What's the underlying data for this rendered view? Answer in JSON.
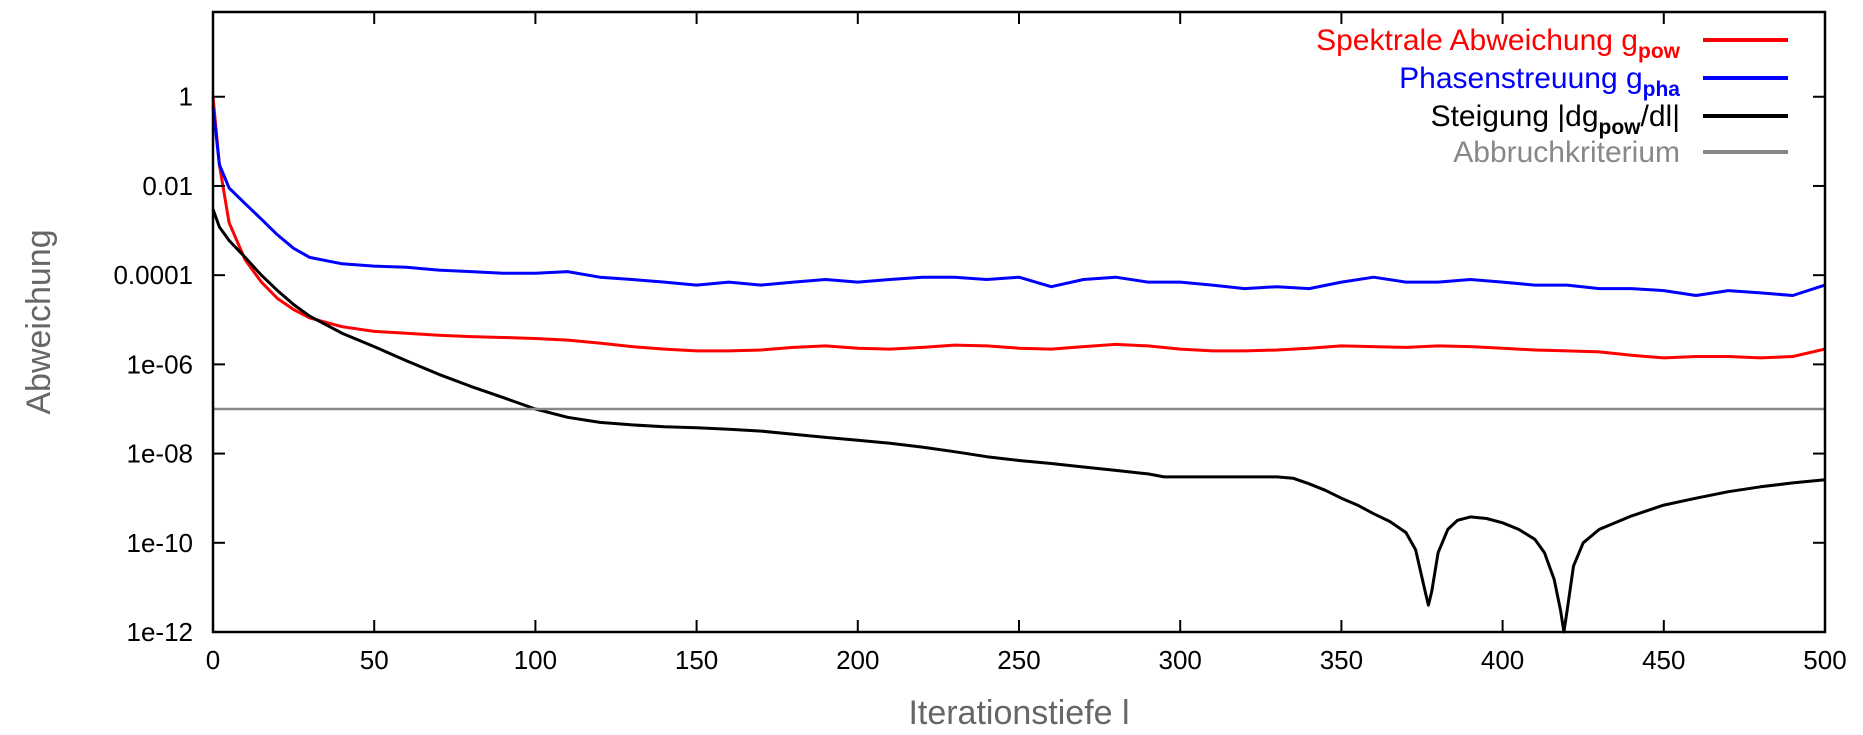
{
  "chart_data": {
    "type": "line",
    "xlabel": "Iterationstiefe l",
    "ylabel": "Abweichung",
    "xlim": [
      0,
      500
    ],
    "ylim_log10": [
      -12,
      1.9
    ],
    "yscale": "log",
    "grid": false,
    "legend_position": "top-right",
    "x_ticks": [
      "0",
      "50",
      "100",
      "150",
      "200",
      "250",
      "300",
      "350",
      "400",
      "450",
      "500"
    ],
    "y_ticks": [
      {
        "label": "1",
        "value": 1
      },
      {
        "label": "0.01",
        "value": 0.01
      },
      {
        "label": "0.0001",
        "value": 0.0001
      },
      {
        "label": "1e-06",
        "value": 1e-06
      },
      {
        "label": "1e-08",
        "value": 1e-08
      },
      {
        "label": "1e-10",
        "value": 1e-10
      },
      {
        "label": "1e-12",
        "value": 1e-12
      }
    ],
    "series": [
      {
        "name": "Spektrale Abweichung g_pow",
        "legend_main": "Spektrale Abweichung g",
        "legend_sub": "pow",
        "legend_tail": "",
        "color": "#ff0000",
        "x": [
          0,
          2,
          5,
          10,
          15,
          20,
          25,
          30,
          40,
          50,
          60,
          70,
          80,
          90,
          100,
          110,
          120,
          130,
          140,
          150,
          160,
          170,
          180,
          190,
          200,
          210,
          220,
          230,
          240,
          250,
          260,
          270,
          280,
          290,
          300,
          310,
          320,
          330,
          340,
          350,
          360,
          370,
          380,
          390,
          400,
          410,
          420,
          430,
          440,
          450,
          460,
          470,
          480,
          490,
          500
        ],
        "y": [
          1,
          0.03,
          0.0015,
          0.00022,
          7e-05,
          3e-05,
          1.7e-05,
          1.1e-05,
          7e-06,
          5.5e-06,
          5e-06,
          4.5e-06,
          4.2e-06,
          4e-06,
          3.8e-06,
          3.5e-06,
          3e-06,
          2.5e-06,
          2.2e-06,
          2e-06,
          2e-06,
          2.1e-06,
          2.4e-06,
          2.6e-06,
          2.3e-06,
          2.2e-06,
          2.4e-06,
          2.7e-06,
          2.6e-06,
          2.3e-06,
          2.2e-06,
          2.5e-06,
          2.8e-06,
          2.6e-06,
          2.2e-06,
          2e-06,
          2e-06,
          2.1e-06,
          2.3e-06,
          2.6e-06,
          2.5e-06,
          2.4e-06,
          2.6e-06,
          2.5e-06,
          2.3e-06,
          2.1e-06,
          2e-06,
          1.9e-06,
          1.6e-06,
          1.4e-06,
          1.5e-06,
          1.5e-06,
          1.4e-06,
          1.5e-06,
          2.2e-06
        ]
      },
      {
        "name": "Phasenstreuung g_pha",
        "legend_main": "Phasenstreuung g",
        "legend_sub": "pha",
        "legend_tail": "",
        "color": "#0000ff",
        "x": [
          0,
          2,
          5,
          10,
          15,
          20,
          25,
          30,
          40,
          50,
          60,
          70,
          80,
          90,
          100,
          110,
          120,
          130,
          140,
          150,
          160,
          170,
          180,
          190,
          200,
          210,
          220,
          230,
          240,
          250,
          260,
          270,
          280,
          290,
          300,
          310,
          320,
          330,
          340,
          350,
          360,
          370,
          380,
          390,
          400,
          410,
          420,
          430,
          440,
          450,
          460,
          470,
          480,
          490,
          500
        ],
        "y": [
          0.6,
          0.03,
          0.009,
          0.004,
          0.0018,
          0.0008,
          0.0004,
          0.00025,
          0.00018,
          0.00016,
          0.00015,
          0.00013,
          0.00012,
          0.00011,
          0.00011,
          0.00012,
          9e-05,
          8e-05,
          7e-05,
          6e-05,
          7e-05,
          6e-05,
          7e-05,
          8e-05,
          7e-05,
          8e-05,
          9e-05,
          9e-05,
          8e-05,
          9e-05,
          5.5e-05,
          8e-05,
          9e-05,
          7e-05,
          7e-05,
          6e-05,
          5e-05,
          5.5e-05,
          5e-05,
          7e-05,
          9e-05,
          7e-05,
          7e-05,
          8e-05,
          7e-05,
          6e-05,
          6e-05,
          5e-05,
          5e-05,
          4.5e-05,
          3.5e-05,
          4.5e-05,
          4e-05,
          3.5e-05,
          6e-05
        ]
      },
      {
        "name": "Steigung |dg_pow/dl|",
        "legend_main": "Steigung |dg",
        "legend_sub": "pow",
        "legend_tail": "/dl|",
        "color": "#000000",
        "x": [
          0,
          2,
          5,
          10,
          15,
          20,
          25,
          30,
          40,
          50,
          60,
          70,
          80,
          90,
          100,
          110,
          120,
          130,
          140,
          150,
          160,
          170,
          180,
          190,
          200,
          210,
          220,
          230,
          240,
          250,
          260,
          270,
          280,
          290,
          295,
          300,
          310,
          320,
          330,
          335,
          340,
          345,
          350,
          355,
          360,
          365,
          370,
          373,
          376,
          377,
          378,
          380,
          383,
          386,
          390,
          395,
          400,
          405,
          410,
          413,
          416,
          418,
          419,
          420,
          422,
          425,
          430,
          440,
          450,
          460,
          470,
          480,
          490,
          500
        ],
        "y": [
          0.003,
          0.0012,
          0.0006,
          0.00025,
          0.0001,
          4.5e-05,
          2.2e-05,
          1.2e-05,
          5e-06,
          2.5e-06,
          1.2e-06,
          6e-07,
          3.2e-07,
          1.8e-07,
          1e-07,
          6.5e-08,
          5e-08,
          4.4e-08,
          4e-08,
          3.8e-08,
          3.5e-08,
          3.2e-08,
          2.7e-08,
          2.3e-08,
          2e-08,
          1.7e-08,
          1.4e-08,
          1.1e-08,
          8.5e-09,
          7e-09,
          6e-09,
          5e-09,
          4.2e-09,
          3.5e-09,
          3e-09,
          3e-09,
          3e-09,
          3e-09,
          3e-09,
          2.8e-09,
          2.1e-09,
          1.5e-09,
          1e-09,
          7e-10,
          4.5e-10,
          3e-10,
          1.7e-10,
          7e-11,
          8e-12,
          4e-12,
          8e-12,
          6e-11,
          2e-10,
          3.2e-10,
          3.8e-10,
          3.5e-10,
          2.8e-10,
          2e-10,
          1.2e-10,
          6e-11,
          1.5e-11,
          3e-12,
          1e-12,
          3e-12,
          3e-11,
          1e-10,
          2e-10,
          4e-10,
          7e-10,
          1e-09,
          1.4e-09,
          1.8e-09,
          2.2e-09,
          2.6e-09
        ]
      },
      {
        "name": "Abbruchkriterium",
        "legend_main": "Abbruchkriterium",
        "legend_sub": "",
        "legend_tail": "",
        "color": "#888888",
        "x": [
          0,
          500
        ],
        "y": [
          1e-07,
          1e-07
        ]
      }
    ]
  }
}
